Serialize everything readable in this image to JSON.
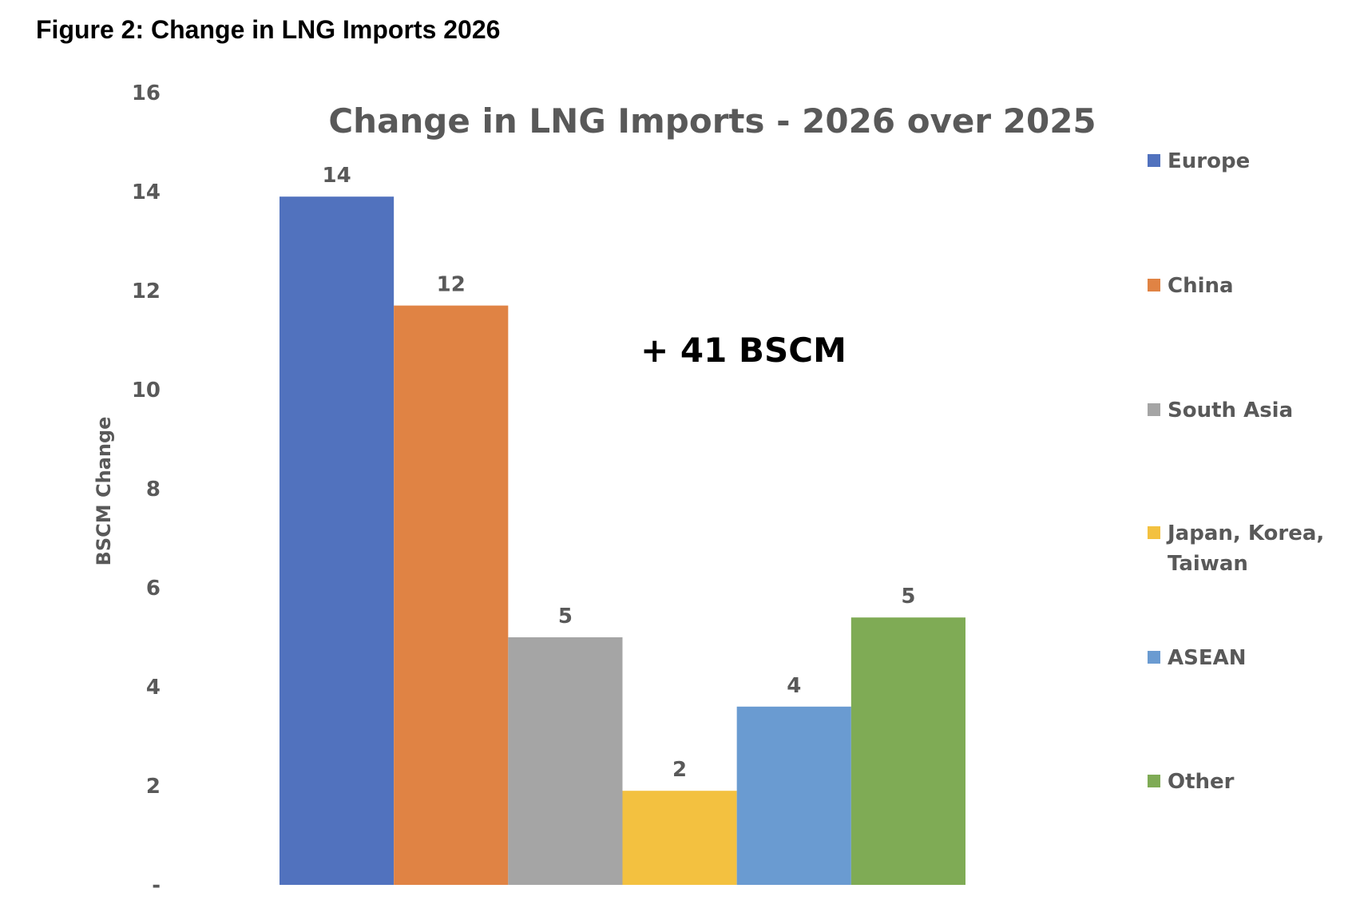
{
  "figure_caption": "Figure 2: Change in LNG Imports 2026",
  "chart_data": {
    "type": "bar",
    "title": "Change in LNG Imports - 2026 over 2025",
    "ylabel": "BSCM Change",
    "xlabel": "",
    "ylim": [
      0,
      16
    ],
    "yticks": [
      0,
      2,
      4,
      6,
      8,
      10,
      12,
      14,
      16
    ],
    "ytick_labels": [
      "-",
      "2",
      "4",
      "6",
      "8",
      "10",
      "12",
      "14",
      "16"
    ],
    "grid": false,
    "legend_position": "right",
    "annotation": "+ 41 BSCM",
    "series": [
      {
        "name": "Europe",
        "value": 13.9,
        "label": "14",
        "color": "#5172BE"
      },
      {
        "name": "China",
        "value": 11.7,
        "label": "12",
        "color": "#E08344"
      },
      {
        "name": "South Asia",
        "value": 5.0,
        "label": "5",
        "color": "#A5A5A5"
      },
      {
        "name": "Japan, Korea, Taiwan",
        "name_lines": [
          "Japan, Korea,",
          "Taiwan"
        ],
        "value": 1.9,
        "label": "2",
        "color": "#F3C140"
      },
      {
        "name": "ASEAN",
        "value": 3.6,
        "label": "4",
        "color": "#6A9BD1"
      },
      {
        "name": "Other",
        "value": 5.4,
        "label": "5",
        "color": "#7FAB55"
      }
    ]
  }
}
